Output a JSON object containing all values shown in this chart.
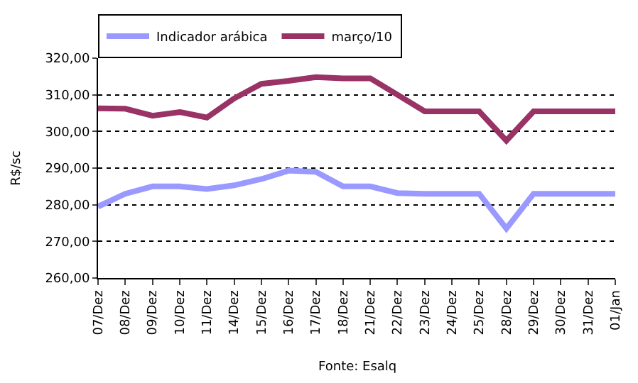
{
  "chart_data": {
    "type": "line",
    "ylabel": "R$/sc",
    "categories": [
      "07/Dez",
      "08/Dez",
      "09/Dez",
      "10/Dez",
      "11/Dez",
      "14/Dez",
      "15/Dez",
      "16/Dez",
      "17/Dez",
      "18/Dez",
      "21/Dez",
      "22/Dez",
      "23/Dez",
      "24/Dez",
      "25/Dez",
      "28/Dez",
      "29/Dez",
      "30/Dez",
      "31/Dez",
      "01/Jan"
    ],
    "series": [
      {
        "name": "Indicador arábica",
        "color": "#9999ff",
        "values": [
          279.5,
          283,
          285,
          285,
          284.3,
          285.3,
          287,
          289.3,
          289,
          285,
          285,
          283.2,
          283,
          283,
          283,
          273.5,
          283,
          283,
          283,
          283
        ]
      },
      {
        "name": "março/10",
        "color": "#993366",
        "values": [
          306.3,
          306.2,
          304.3,
          305.3,
          303.8,
          309,
          313,
          313.8,
          314.8,
          314.5,
          314.5,
          310,
          305.5,
          305.5,
          305.5,
          297.5,
          305.5,
          305.5,
          305.5,
          305.5
        ]
      }
    ],
    "ylim": [
      260,
      320
    ],
    "yticks": [
      {
        "value": 260,
        "label": "260,00"
      },
      {
        "value": 270,
        "label": "270,00"
      },
      {
        "value": 280,
        "label": "280,00"
      },
      {
        "value": 290,
        "label": "290,00"
      },
      {
        "value": 300,
        "label": "300,00"
      },
      {
        "value": 310,
        "label": "310,00"
      },
      {
        "value": 320,
        "label": "320,00"
      }
    ],
    "grid": "y",
    "legend": "top left",
    "line_style": "solid",
    "marker": "none",
    "annotations": [
      "Fonte: Esalq"
    ]
  }
}
